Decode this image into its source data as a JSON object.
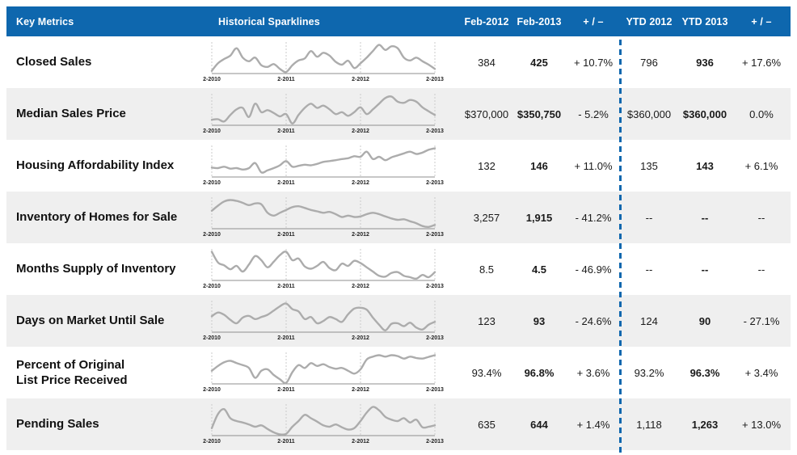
{
  "page": {
    "header": {
      "key_metrics_label": "Key Metrics",
      "sparklines_label": "Historical Sparklines"
    }
  },
  "colors": {
    "header_bg": "#0E67AE",
    "header_text": "#FFFFFF",
    "row_alt_bg": "#EFEFEF",
    "divider_blue": "#0E67AE",
    "sparkline_gray": "#ACACAC",
    "gridline_gray": "#CBCBCB",
    "baseline_gray": "#8F8F8F",
    "text_dark": "#1A1A1A"
  },
  "chart_data": {
    "type": "table",
    "columns": [
      "Feb-2012",
      "Feb-2013",
      "+ / –",
      "YTD 2012",
      "YTD 2013",
      "+ / –"
    ],
    "sparkline_x_labels": [
      "2-2010",
      "2-2011",
      "2-2012",
      "2-2013"
    ],
    "sparkline_note": "normalized monthly values Feb-2010 through Feb-2013, 0 = row minimum baseline, 1 = row maximum",
    "rows": [
      {
        "metric": "Closed Sales",
        "feb2012": "384",
        "feb2013": "425",
        "change": "+ 10.7%",
        "ytd2012": "796",
        "ytd2013": "936",
        "ytd_change": "+ 17.6%",
        "sparkline": [
          0.08,
          0.35,
          0.5,
          0.62,
          0.88,
          0.55,
          0.42,
          0.55,
          0.28,
          0.22,
          0.32,
          0.15,
          0.04,
          0.28,
          0.45,
          0.52,
          0.78,
          0.58,
          0.72,
          0.62,
          0.4,
          0.3,
          0.44,
          0.18,
          0.35,
          0.55,
          0.78,
          1.0,
          0.82,
          0.95,
          0.88,
          0.55,
          0.45,
          0.55,
          0.42,
          0.3,
          0.15
        ]
      },
      {
        "metric": "Median Sales Price",
        "feb2012": "$370,000",
        "feb2013": "$350,750",
        "change": "- 5.2%",
        "ytd2012": "$360,000",
        "ytd2013": "$360,000",
        "ytd_change": "0.0%",
        "sparkline": [
          0.18,
          0.2,
          0.12,
          0.35,
          0.55,
          0.6,
          0.28,
          0.75,
          0.45,
          0.52,
          0.42,
          0.3,
          0.38,
          0.05,
          0.35,
          0.6,
          0.75,
          0.6,
          0.68,
          0.55,
          0.38,
          0.45,
          0.32,
          0.45,
          0.62,
          0.38,
          0.55,
          0.75,
          0.95,
          1.0,
          0.82,
          0.78,
          0.88,
          0.82,
          0.62,
          0.48,
          0.35
        ]
      },
      {
        "metric": "Housing Affordability Index",
        "feb2012": "132",
        "feb2013": "146",
        "change": "+ 11.0%",
        "ytd2012": "135",
        "ytd2013": "143",
        "ytd_change": "+ 6.1%",
        "sparkline": [
          0.32,
          0.3,
          0.35,
          0.28,
          0.3,
          0.25,
          0.3,
          0.48,
          0.15,
          0.22,
          0.3,
          0.4,
          0.55,
          0.35,
          0.38,
          0.42,
          0.4,
          0.45,
          0.52,
          0.55,
          0.58,
          0.62,
          0.65,
          0.72,
          0.7,
          0.88,
          0.62,
          0.7,
          0.58,
          0.68,
          0.75,
          0.82,
          0.88,
          0.8,
          0.85,
          0.95,
          1.0
        ]
      },
      {
        "metric": "Inventory of Homes for Sale",
        "feb2012": "3,257",
        "feb2013": "1,915",
        "change": "- 41.2%",
        "ytd2012": "--",
        "ytd2013": "--",
        "ytd_change": "--",
        "sparkline": [
          0.62,
          0.8,
          0.95,
          1.0,
          0.97,
          0.9,
          0.82,
          0.88,
          0.85,
          0.55,
          0.45,
          0.55,
          0.65,
          0.75,
          0.78,
          0.72,
          0.65,
          0.6,
          0.55,
          0.58,
          0.5,
          0.4,
          0.45,
          0.4,
          0.42,
          0.5,
          0.55,
          0.5,
          0.42,
          0.35,
          0.3,
          0.32,
          0.25,
          0.18,
          0.08,
          0.05,
          0.12
        ]
      },
      {
        "metric": "Months Supply of Inventory",
        "feb2012": "8.5",
        "feb2013": "4.5",
        "change": "- 46.9%",
        "ytd2012": "--",
        "ytd2013": "--",
        "ytd_change": "--",
        "sparkline": [
          1.0,
          0.62,
          0.52,
          0.38,
          0.5,
          0.3,
          0.55,
          0.85,
          0.7,
          0.45,
          0.65,
          0.88,
          1.0,
          0.7,
          0.76,
          0.48,
          0.4,
          0.5,
          0.64,
          0.42,
          0.35,
          0.58,
          0.5,
          0.68,
          0.6,
          0.45,
          0.3,
          0.15,
          0.12,
          0.25,
          0.28,
          0.15,
          0.1,
          0.05,
          0.18,
          0.1,
          0.28
        ]
      },
      {
        "metric": "Days on Market Until Sale",
        "feb2012": "123",
        "feb2013": "93",
        "change": "- 24.6%",
        "ytd2012": "124",
        "ytd2013": "90",
        "ytd_change": "- 27.1%",
        "sparkline": [
          0.55,
          0.68,
          0.6,
          0.42,
          0.3,
          0.5,
          0.56,
          0.45,
          0.52,
          0.6,
          0.75,
          0.9,
          1.0,
          0.8,
          0.72,
          0.45,
          0.52,
          0.3,
          0.38,
          0.52,
          0.45,
          0.35,
          0.62,
          0.82,
          0.85,
          0.78,
          0.5,
          0.25,
          0.05,
          0.28,
          0.3,
          0.2,
          0.32,
          0.15,
          0.08,
          0.25,
          0.35
        ]
      },
      {
        "metric": "Percent of Original\nList Price Received",
        "feb2012": "93.4%",
        "feb2013": "96.8%",
        "change": "+ 3.6%",
        "ytd2012": "93.2%",
        "ytd2013": "96.3%",
        "ytd_change": "+ 3.4%",
        "sparkline": [
          0.45,
          0.62,
          0.75,
          0.8,
          0.72,
          0.65,
          0.55,
          0.2,
          0.45,
          0.5,
          0.3,
          0.15,
          0.02,
          0.4,
          0.65,
          0.55,
          0.72,
          0.62,
          0.68,
          0.58,
          0.52,
          0.55,
          0.45,
          0.35,
          0.5,
          0.85,
          0.95,
          1.0,
          0.95,
          1.0,
          0.97,
          0.88,
          0.95,
          0.9,
          0.88,
          0.94,
          1.0
        ]
      },
      {
        "metric": "Pending Sales",
        "feb2012": "635",
        "feb2013": "644",
        "change": "+ 1.4%",
        "ytd2012": "1,118",
        "ytd2013": "1,263",
        "ytd_change": "+ 13.0%",
        "sparkline": [
          0.25,
          0.75,
          0.92,
          0.6,
          0.5,
          0.45,
          0.38,
          0.3,
          0.35,
          0.22,
          0.1,
          0.03,
          0.05,
          0.3,
          0.5,
          0.72,
          0.6,
          0.48,
          0.35,
          0.3,
          0.38,
          0.28,
          0.2,
          0.25,
          0.5,
          0.8,
          1.0,
          0.88,
          0.65,
          0.55,
          0.5,
          0.6,
          0.45,
          0.55,
          0.28,
          0.3,
          0.35
        ]
      }
    ]
  }
}
